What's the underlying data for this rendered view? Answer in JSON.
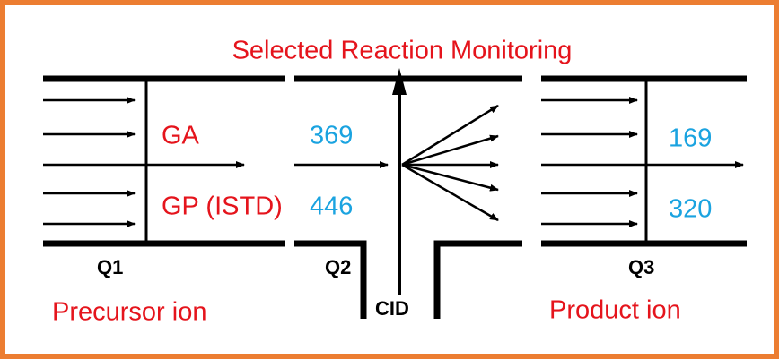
{
  "title": "Selected Reaction Monitoring",
  "stages": [
    {
      "label": "Q1",
      "caption": "Precursor ion"
    },
    {
      "label": "Q2",
      "caption": "CID"
    },
    {
      "label": "Q3",
      "caption": "Product ion"
    }
  ],
  "compounds": [
    {
      "name": "GA",
      "precursor": "369",
      "product": "169"
    },
    {
      "name": "GP (ISTD)",
      "precursor": "446",
      "product": "320"
    }
  ]
}
